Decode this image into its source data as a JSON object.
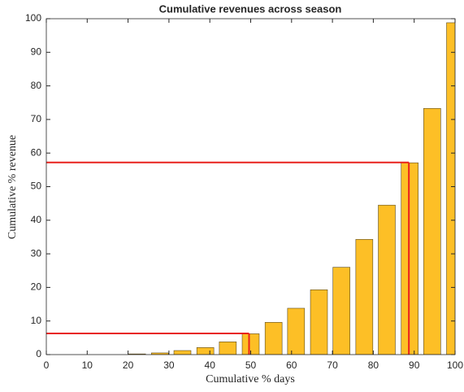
{
  "chart_data": {
    "type": "bar",
    "title": "Cumulative revenues across season",
    "xlabel": "Cumulative % days",
    "ylabel": "Cumulative % revenue",
    "x": [
      5.6,
      11.1,
      16.7,
      22.2,
      27.8,
      33.3,
      38.9,
      44.4,
      50,
      55.6,
      61.1,
      66.7,
      72.2,
      77.8,
      83.3,
      88.9,
      94.4,
      100
    ],
    "values": [
      0,
      0,
      0,
      0.2,
      0.5,
      1.2,
      2.1,
      3.8,
      6.2,
      9.6,
      13.8,
      19.3,
      26,
      34.3,
      44.5,
      57.1,
      73.3,
      98.8
    ],
    "color": "#fdbf26",
    "xlim": [
      0,
      100
    ],
    "xticks": [
      0,
      10,
      20,
      30,
      40,
      50,
      60,
      70,
      80,
      90,
      100
    ],
    "ylim": [
      0,
      100
    ],
    "yticks": [
      0,
      10,
      20,
      30,
      40,
      50,
      60,
      70,
      80,
      90,
      100
    ],
    "grid": false,
    "reference_lines": [
      {
        "x": 49.6,
        "y": 6.3
      },
      {
        "x": 88.7,
        "y": 57.2
      }
    ],
    "reference_color": "#e8201c"
  }
}
